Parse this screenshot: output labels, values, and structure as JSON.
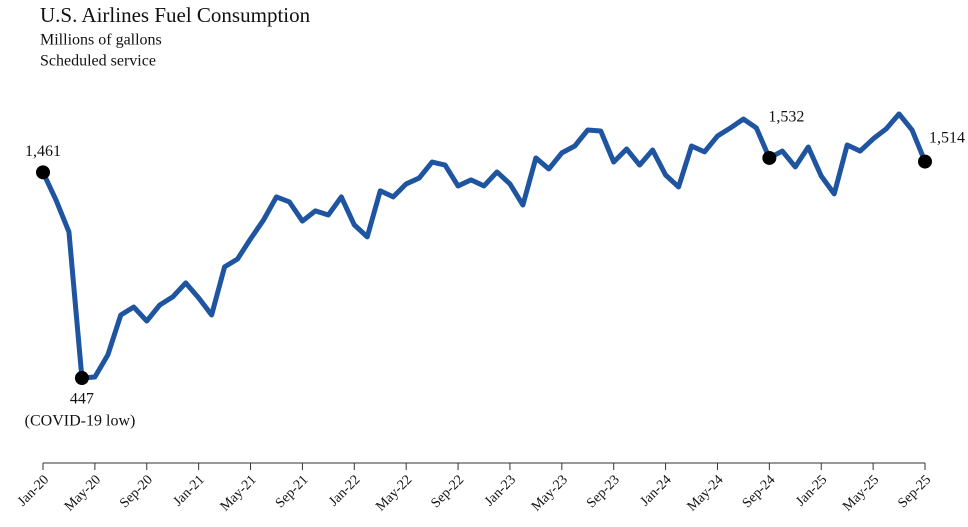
{
  "chart_data": {
    "type": "line",
    "title": "U.S. Airlines Fuel Consumption",
    "subtitle": [
      "Millions of gallons",
      "Scheduled service"
    ],
    "categories": [
      "Jan-20",
      null,
      null,
      null,
      "May-20",
      null,
      null,
      null,
      "Sep-20",
      null,
      null,
      null,
      "Jan-21",
      null,
      null,
      null,
      "May-21",
      null,
      null,
      null,
      "Sep-21",
      null,
      null,
      null,
      "Jan-22",
      null,
      null,
      null,
      "May-22",
      null,
      null,
      null,
      "Sep-22",
      null,
      null,
      null,
      "Jan-23",
      null,
      null,
      null,
      "May-23",
      null,
      null,
      null,
      "Sep-23",
      null,
      null,
      null,
      "Jan-24",
      null,
      null,
      null,
      "May-24",
      null,
      null,
      null,
      "Sep-24",
      null,
      null,
      null,
      "Jan-25",
      null,
      null,
      null,
      "May-25",
      null,
      null,
      null,
      "Sep-25"
    ],
    "series": [
      {
        "color": "#1f55a0",
        "values": [
          1461,
          1325,
          1167,
          447,
          452,
          561,
          758,
          797,
          728,
          807,
          847,
          916,
          842,
          758,
          995,
          1034,
          1133,
          1226,
          1340,
          1315,
          1221,
          1271,
          1251,
          1340,
          1202,
          1143,
          1370,
          1340,
          1404,
          1433,
          1512,
          1497,
          1394,
          1424,
          1394,
          1463,
          1404,
          1300,
          1532,
          1478,
          1557,
          1591,
          1670,
          1665,
          1512,
          1576,
          1497,
          1571,
          1448,
          1389,
          1591,
          1562,
          1640,
          1680,
          1724,
          1680,
          1532,
          1566,
          1488,
          1586,
          1443,
          1355,
          1596,
          1566,
          1626,
          1675,
          1749,
          1670,
          1514
        ],
        "value_labels": [
          "1,461",
          null,
          null,
          "447",
          null,
          null,
          null,
          null,
          null,
          null,
          null,
          null,
          null,
          null,
          null,
          null,
          null,
          null,
          null,
          null,
          null,
          null,
          null,
          null,
          null,
          null,
          null,
          null,
          null,
          null,
          null,
          null,
          null,
          null,
          null,
          null,
          null,
          null,
          null,
          null,
          null,
          null,
          null,
          null,
          null,
          null,
          null,
          null,
          null,
          null,
          null,
          null,
          null,
          null,
          null,
          null,
          "1,532",
          null,
          null,
          null,
          null,
          null,
          null,
          null,
          null,
          null,
          null,
          null,
          "1,514"
        ]
      }
    ],
    "annotations": [
      "(COVID-19 low)"
    ],
    "ylim": [
      0,
      1800
    ]
  }
}
